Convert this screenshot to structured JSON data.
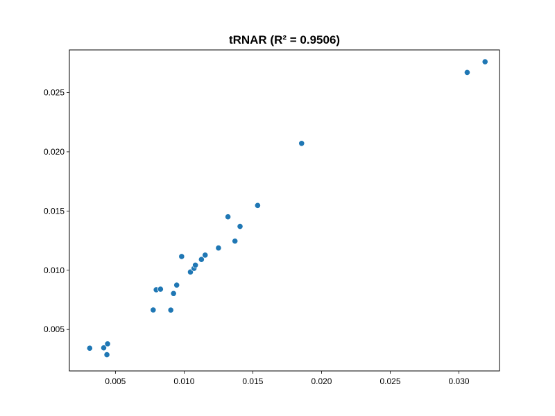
{
  "chart_data": {
    "type": "scatter",
    "title": "tRNAR (R² = 0.9506)",
    "xlabel": "",
    "ylabel": "",
    "xlim": [
      0.00165,
      0.03295
    ],
    "ylim": [
      0.0015,
      0.0286
    ],
    "xticks": [
      {
        "value": 0.005,
        "label": "0.005"
      },
      {
        "value": 0.01,
        "label": "0.010"
      },
      {
        "value": 0.015,
        "label": "0.015"
      },
      {
        "value": 0.02,
        "label": "0.020"
      },
      {
        "value": 0.025,
        "label": "0.025"
      },
      {
        "value": 0.03,
        "label": "0.030"
      }
    ],
    "yticks": [
      {
        "value": 0.005,
        "label": "0.005"
      },
      {
        "value": 0.01,
        "label": "0.010"
      },
      {
        "value": 0.015,
        "label": "0.015"
      },
      {
        "value": 0.02,
        "label": "0.020"
      },
      {
        "value": 0.025,
        "label": "0.025"
      }
    ],
    "grid": false,
    "color": "#1f77b4",
    "points": [
      {
        "x": 0.00313,
        "y": 0.00342
      },
      {
        "x": 0.00415,
        "y": 0.00345
      },
      {
        "x": 0.00443,
        "y": 0.00379
      },
      {
        "x": 0.00438,
        "y": 0.00287
      },
      {
        "x": 0.00775,
        "y": 0.00665
      },
      {
        "x": 0.00797,
        "y": 0.00835
      },
      {
        "x": 0.00828,
        "y": 0.0084
      },
      {
        "x": 0.00903,
        "y": 0.00664
      },
      {
        "x": 0.00923,
        "y": 0.00804
      },
      {
        "x": 0.00946,
        "y": 0.00875
      },
      {
        "x": 0.00982,
        "y": 0.01116
      },
      {
        "x": 0.01046,
        "y": 0.00985
      },
      {
        "x": 0.01072,
        "y": 0.01016
      },
      {
        "x": 0.01082,
        "y": 0.01043
      },
      {
        "x": 0.01126,
        "y": 0.01091
      },
      {
        "x": 0.01153,
        "y": 0.01128
      },
      {
        "x": 0.0125,
        "y": 0.01188
      },
      {
        "x": 0.01319,
        "y": 0.01451
      },
      {
        "x": 0.0137,
        "y": 0.01246
      },
      {
        "x": 0.01407,
        "y": 0.0137
      },
      {
        "x": 0.01535,
        "y": 0.01547
      },
      {
        "x": 0.01855,
        "y": 0.02071
      },
      {
        "x": 0.0306,
        "y": 0.0267
      },
      {
        "x": 0.0319,
        "y": 0.0276
      }
    ]
  }
}
